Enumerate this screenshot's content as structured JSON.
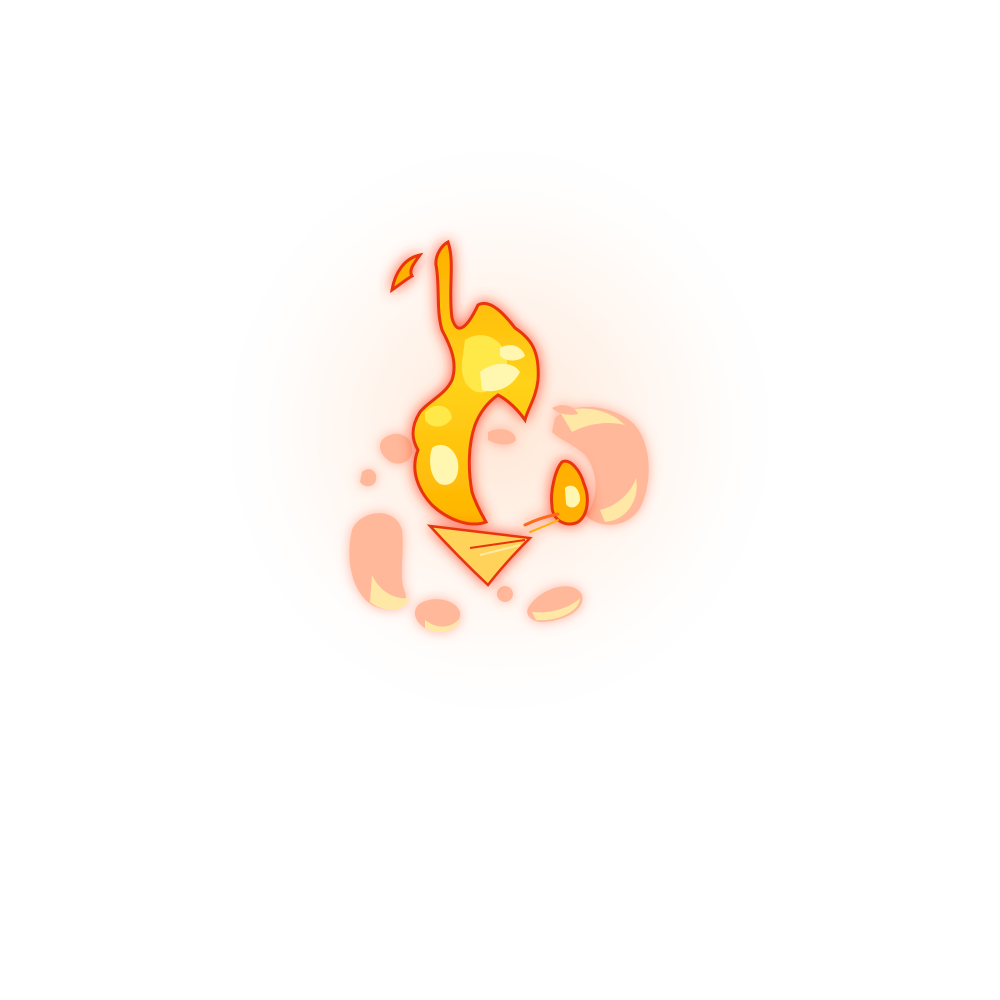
{
  "effect": {
    "kind": "fire-burst",
    "colors": {
      "core": "#fff6b0",
      "inner": "#ffd21a",
      "mid": "#ffa200",
      "outer": "#ff3a1a",
      "glow": "#ff8c5a",
      "smoke": "#ffb89a",
      "smoke_highlight": "#ffe7a6"
    }
  }
}
